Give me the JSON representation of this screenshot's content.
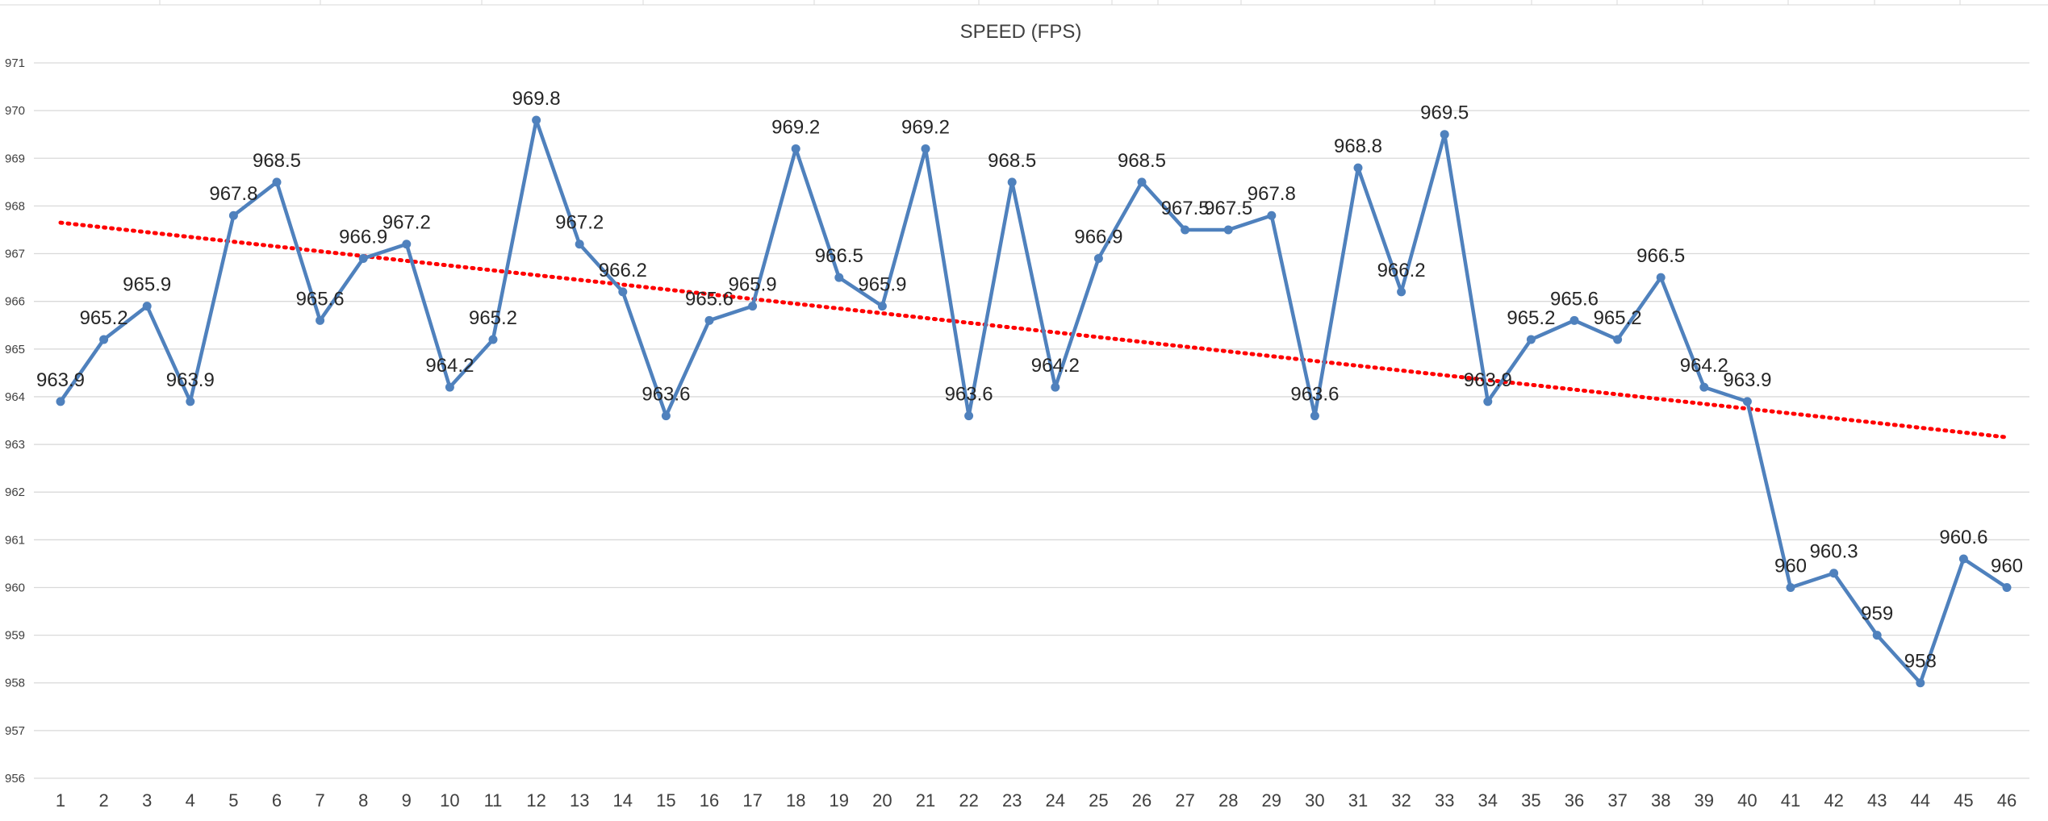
{
  "chart_data": {
    "type": "line",
    "title": "SPEED (FPS)",
    "xlabel": "",
    "ylabel": "",
    "ylim": [
      956,
      971
    ],
    "yticks": [
      956,
      957,
      958,
      959,
      960,
      961,
      962,
      963,
      964,
      965,
      966,
      967,
      968,
      969,
      970,
      971
    ],
    "grid": true,
    "legend": "none",
    "x": [
      1,
      2,
      3,
      4,
      5,
      6,
      7,
      8,
      9,
      10,
      11,
      12,
      13,
      14,
      15,
      16,
      17,
      18,
      19,
      20,
      21,
      22,
      23,
      24,
      25,
      26,
      27,
      28,
      29,
      30,
      31,
      32,
      33,
      34,
      35,
      36,
      37,
      38,
      39,
      40,
      41,
      42,
      43,
      44,
      45,
      46
    ],
    "series": [
      {
        "color": "#4f81bd",
        "values": [
          963.9,
          965.2,
          965.9,
          963.9,
          967.8,
          968.5,
          965.6,
          966.9,
          967.2,
          964.2,
          965.2,
          969.8,
          967.2,
          966.2,
          963.6,
          965.6,
          965.9,
          969.2,
          966.5,
          965.9,
          969.2,
          963.6,
          968.5,
          964.2,
          966.9,
          968.5,
          967.5,
          967.5,
          967.8,
          963.6,
          968.8,
          966.2,
          969.5,
          963.9,
          965.2,
          965.6,
          965.2,
          966.5,
          964.2,
          963.9,
          960,
          960.3,
          959,
          958,
          960.6,
          960
        ],
        "labels": [
          "963.9",
          "965.2",
          "965.9",
          "963.9",
          "967.8",
          "968.5",
          "965.6",
          "966.9",
          "967.2",
          "964.2",
          "965.2",
          "969.8",
          "967.2",
          "966.2",
          "963.6",
          "965.6",
          "965.9",
          "969.2",
          "966.5",
          "965.9",
          "969.2",
          "963.6",
          "968.5",
          "964.2",
          "966.9",
          "968.5",
          "967.5",
          "967.5",
          "967.8",
          "963.6",
          "968.8",
          "966.2",
          "969.5",
          "963.9",
          "965.2",
          "965.6",
          "965.2",
          "966.5",
          "964.2",
          "963.9",
          "960",
          "960.3",
          "959",
          "958",
          "960.6",
          "960"
        ]
      }
    ],
    "trendline": {
      "type": "linear",
      "style": "dotted",
      "color": "#ff0000",
      "start": [
        1,
        967.65
      ],
      "end": [
        46,
        963.15
      ]
    }
  }
}
